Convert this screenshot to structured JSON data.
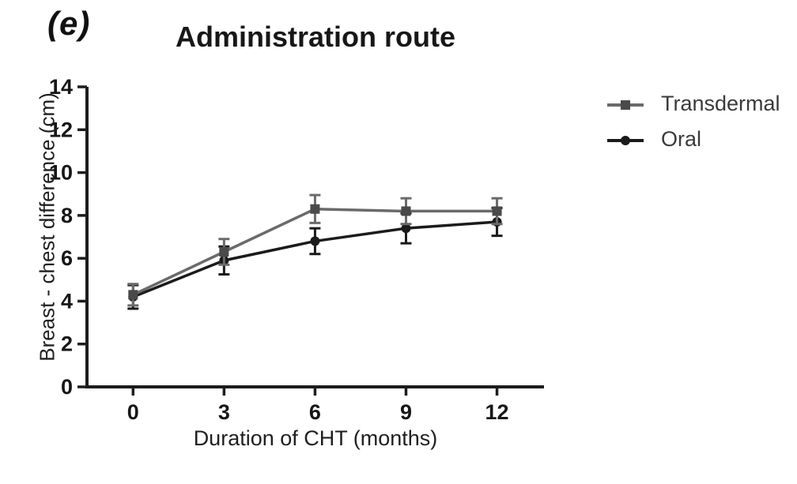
{
  "figure_label": "(e)",
  "title": "Administration route",
  "legend": {
    "position": "right",
    "items": [
      {
        "name": "Transdermal",
        "marker": "square",
        "color": "#6a6a6a",
        "marker_color": "#4a4a4a"
      },
      {
        "name": "Oral",
        "marker": "circle",
        "color": "#1b1b1b",
        "marker_color": "#1b1b1b"
      }
    ]
  },
  "chart_data": {
    "type": "line",
    "title": "Administration route",
    "xlabel": "Duration of CHT (months)",
    "ylabel": "Breast - chest difference (cm)",
    "x": [
      0,
      3,
      6,
      9,
      12
    ],
    "x_ticks": [
      0,
      3,
      6,
      9,
      12
    ],
    "y_ticks": [
      0,
      2,
      4,
      6,
      8,
      10,
      12,
      14
    ],
    "xlim": [
      -1.52,
      13.55
    ],
    "ylim": [
      0,
      14
    ],
    "grid": false,
    "legend_position": "right",
    "axis_color": "#1d1d1d",
    "tick_label_color": "#171717",
    "series": [
      {
        "name": "Transdermal",
        "marker": "square",
        "color": "#6a6a6a",
        "marker_color": "#4a4a4a",
        "values": [
          4.3,
          6.3,
          8.3,
          8.2,
          8.2
        ],
        "errors": [
          0.5,
          0.6,
          0.65,
          0.6,
          0.6
        ]
      },
      {
        "name": "Oral",
        "marker": "circle",
        "color": "#1b1b1b",
        "marker_color": "#1b1b1b",
        "values": [
          4.2,
          5.9,
          6.8,
          7.4,
          7.7
        ],
        "errors": [
          0.55,
          0.65,
          0.6,
          0.7,
          0.65
        ]
      }
    ]
  }
}
